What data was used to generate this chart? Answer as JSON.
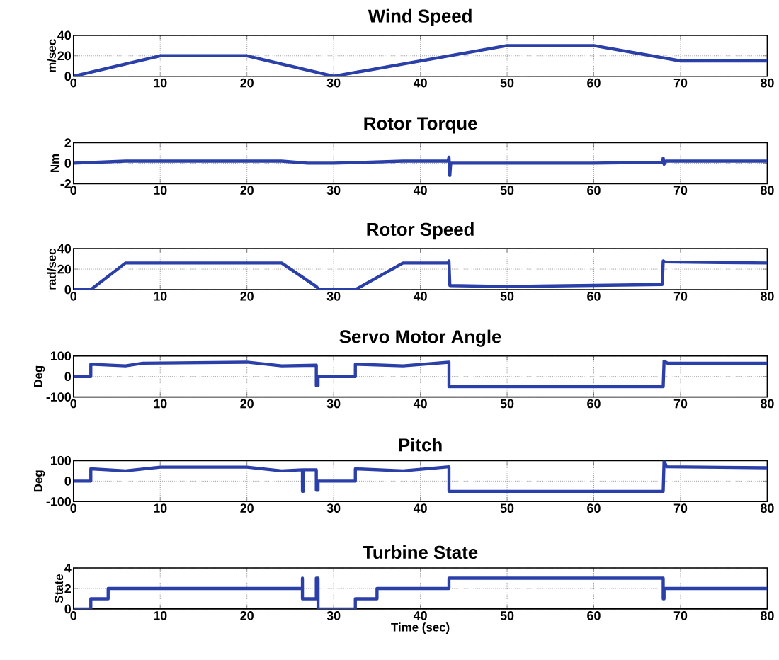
{
  "chart_data": [
    {
      "type": "line",
      "title": "Wind Speed",
      "ylabel": "m/sec",
      "xlim": [
        0,
        80
      ],
      "ylim": [
        0,
        40
      ],
      "xticks": [
        0,
        10,
        20,
        30,
        40,
        50,
        60,
        70,
        80
      ],
      "yticks": [
        0,
        20,
        40
      ],
      "grid": true,
      "series": [
        {
          "color": "#2b3fa8",
          "x": [
            0,
            10,
            20,
            30,
            50,
            60,
            70,
            80
          ],
          "values": [
            0,
            20,
            20,
            0,
            30,
            30,
            15,
            15
          ]
        }
      ]
    },
    {
      "type": "line",
      "title": "Rotor Torque",
      "ylabel": "Nm",
      "xlim": [
        0,
        80
      ],
      "ylim": [
        -2,
        2
      ],
      "xticks": [
        0,
        10,
        20,
        30,
        40,
        50,
        60,
        70,
        80
      ],
      "yticks": [
        -2,
        0,
        2
      ],
      "grid": true,
      "series": [
        {
          "color": "#2b3fa8",
          "x": [
            0,
            6,
            24,
            27,
            30,
            38,
            43.2,
            43.3,
            43.4,
            43.5,
            60,
            67.9,
            68,
            68.1,
            68.3,
            80
          ],
          "values": [
            0,
            0.2,
            0.2,
            0,
            0,
            0.2,
            0.2,
            0.6,
            -1.2,
            0,
            0,
            0.1,
            0.5,
            -0.1,
            0.2,
            0.2
          ]
        }
      ]
    },
    {
      "type": "line",
      "title": "Rotor Speed",
      "ylabel": "rad/sec",
      "xlim": [
        0,
        80
      ],
      "ylim": [
        0,
        40
      ],
      "xticks": [
        0,
        10,
        20,
        30,
        40,
        50,
        60,
        70,
        80
      ],
      "yticks": [
        0,
        20,
        40
      ],
      "grid": true,
      "series": [
        {
          "color": "#2b3fa8",
          "x": [
            0,
            2,
            6,
            24,
            28,
            28.3,
            32.5,
            38,
            43.2,
            43.3,
            43.4,
            50,
            67.9,
            68,
            68.2,
            80
          ],
          "values": [
            0,
            0,
            26,
            26,
            3,
            0,
            0,
            26,
            26,
            28,
            4,
            3,
            5,
            28,
            27,
            26
          ]
        }
      ]
    },
    {
      "type": "line",
      "title": "Servo Motor Angle",
      "ylabel": "Deg",
      "xlim": [
        0,
        80
      ],
      "ylim": [
        -100,
        100
      ],
      "xticks": [
        0,
        10,
        20,
        30,
        40,
        50,
        60,
        70,
        80
      ],
      "yticks": [
        -100,
        0,
        100
      ],
      "grid": true,
      "series": [
        {
          "color": "#2b3fa8",
          "x": [
            0,
            2,
            2,
            6,
            8,
            20,
            24,
            28,
            28,
            28.2,
            28.2,
            32.5,
            32.5,
            38,
            43.3,
            43.3,
            68,
            68.1,
            68.5,
            80
          ],
          "values": [
            0,
            0,
            60,
            52,
            65,
            70,
            52,
            55,
            -45,
            -45,
            0,
            0,
            60,
            52,
            70,
            -50,
            -50,
            75,
            65,
            65
          ]
        }
      ]
    },
    {
      "type": "line",
      "title": "Pitch",
      "ylabel": "Deg",
      "xlim": [
        0,
        80
      ],
      "ylim": [
        -100,
        100
      ],
      "xticks": [
        0,
        10,
        20,
        30,
        40,
        50,
        60,
        70,
        80
      ],
      "yticks": [
        -100,
        0,
        100
      ],
      "grid": true,
      "series": [
        {
          "color": "#2b3fa8",
          "x": [
            0,
            2,
            2,
            6,
            10,
            20,
            24,
            26.4,
            26.4,
            26.5,
            26.5,
            28,
            28,
            28.2,
            28.2,
            32.5,
            32.5,
            38,
            43.3,
            43.3,
            68,
            68.1,
            68.4,
            80
          ],
          "values": [
            0,
            0,
            60,
            50,
            68,
            68,
            50,
            55,
            -50,
            -50,
            55,
            55,
            -45,
            -45,
            0,
            0,
            60,
            50,
            70,
            -50,
            -50,
            98,
            70,
            65
          ]
        }
      ]
    },
    {
      "type": "line",
      "title": "Turbine State",
      "ylabel": "State",
      "xlabel": "Time (sec)",
      "xlim": [
        0,
        80
      ],
      "ylim": [
        0,
        4
      ],
      "xticks": [
        0,
        10,
        20,
        30,
        40,
        50,
        60,
        70,
        80
      ],
      "yticks": [
        0,
        2,
        4
      ],
      "grid": true,
      "series": [
        {
          "color": "#2b3fa8",
          "x": [
            0,
            2,
            2,
            4,
            4,
            26.4,
            26.4,
            26.4,
            28,
            28,
            28.2,
            28.2,
            32.5,
            32.5,
            35,
            35,
            43.3,
            43.3,
            68,
            68,
            68.1,
            68.1,
            80
          ],
          "values": [
            0,
            0,
            1,
            1,
            2,
            2,
            3,
            1,
            1,
            3,
            3,
            0,
            0,
            1,
            1,
            2,
            2,
            3,
            3,
            1,
            1,
            2,
            2
          ]
        }
      ]
    }
  ]
}
